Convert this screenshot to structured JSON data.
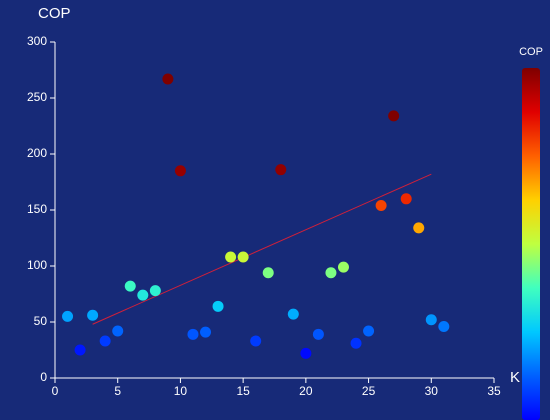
{
  "chart_data": {
    "type": "scatter",
    "y_label": "COP",
    "x_label": "K",
    "x": [
      1,
      2,
      3,
      4,
      5,
      6,
      7,
      8,
      9,
      10,
      11,
      12,
      13,
      14,
      15,
      16,
      17,
      18,
      19,
      20,
      21,
      22,
      23,
      24,
      25,
      26,
      27,
      28,
      29,
      30,
      31
    ],
    "values": [
      55,
      25,
      56,
      33,
      42,
      82,
      74,
      78,
      267,
      185,
      39,
      41,
      64,
      108,
      108,
      33,
      94,
      186,
      57,
      22,
      39,
      94,
      99,
      31,
      42,
      154,
      234,
      160,
      134,
      52,
      46
    ],
    "xlim": [
      0,
      35
    ],
    "ylim": [
      0,
      300
    ],
    "xticks": [
      0,
      5,
      10,
      15,
      20,
      25,
      30,
      35
    ],
    "yticks": [
      0,
      50,
      100,
      150,
      200,
      250,
      300
    ],
    "trendline": {
      "x": [
        3,
        30
      ],
      "y": [
        48,
        182
      ],
      "color": "#d0203a"
    },
    "colorbar": {
      "label": "COP",
      "range": [
        20,
        190
      ],
      "colors": [
        "#0000ff",
        "#0060ff",
        "#00c8ff",
        "#40ffbf",
        "#bfff40",
        "#ffd000",
        "#ff6000",
        "#e00000",
        "#7f0000"
      ]
    }
  }
}
